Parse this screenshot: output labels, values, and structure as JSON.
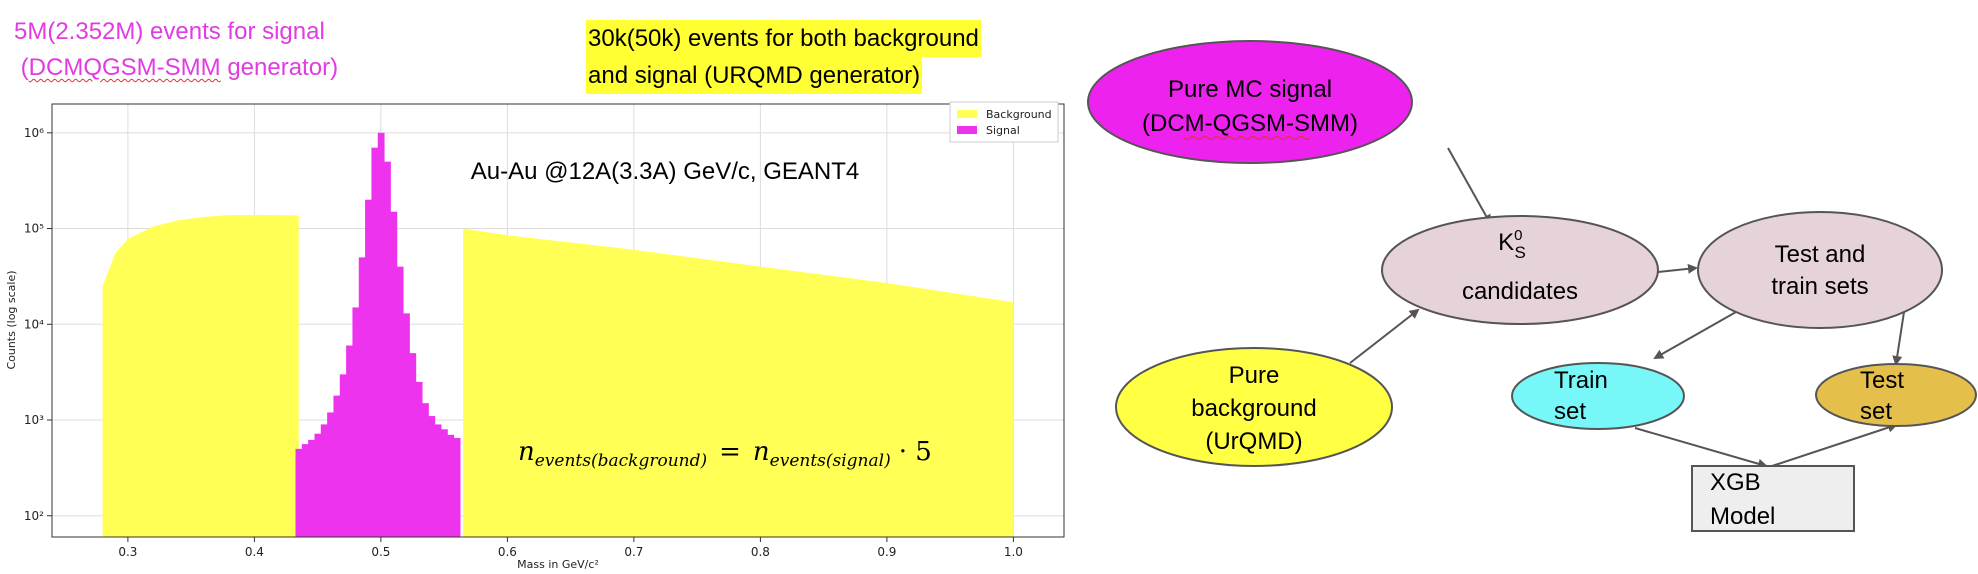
{
  "notes": {
    "signal_line1": "5M(2.352M) events for signal",
    "signal_line2_pre": " (",
    "signal_line2_generator": "DCMQGSM-SMM",
    "signal_line2_post": " generator)",
    "bkg_line1": "30k(50k) events for both background",
    "bkg_line2": "and signal (URQMD generator)"
  },
  "plot": {
    "annotation": "Au-Au @12A(3.3A) GeV/c, GEANT4",
    "formula": {
      "lhs": "n",
      "lhs_sub": "events(background)",
      "eq": "=",
      "rhs": "n",
      "rhs_sub": "events(signal)",
      "tail": "· 5"
    }
  },
  "chart_data": {
    "type": "bar",
    "xlabel": "Mass in GeV/c²",
    "ylabel": "Counts (log scale)",
    "xlim": [
      0.24,
      1.04
    ],
    "ylim": [
      60,
      2000000
    ],
    "log_y": true,
    "grid": true,
    "legend_position": "top-right",
    "x_ticks": [
      "0.3",
      "0.4",
      "0.5",
      "0.6",
      "0.7",
      "0.8",
      "0.9",
      "1.0"
    ],
    "y_ticks": [
      "10²",
      "10³",
      "10⁴",
      "10⁵",
      "10⁶"
    ],
    "series": [
      {
        "name": "Background",
        "color": "#ffff55",
        "x": [
          0.28,
          0.29,
          0.3,
          0.32,
          0.34,
          0.36,
          0.38,
          0.4,
          0.42,
          0.435,
          0.565,
          0.6,
          0.7,
          0.8,
          0.9,
          1.0
        ],
        "y": [
          25000,
          55000,
          78000,
          105000,
          122000,
          132000,
          138000,
          139000,
          138000,
          137000,
          100000,
          85000,
          60000,
          40000,
          27000,
          17000
        ]
      },
      {
        "name": "Signal",
        "color": "#ee33ee",
        "x": [
          0.435,
          0.44,
          0.445,
          0.45,
          0.455,
          0.46,
          0.465,
          0.47,
          0.475,
          0.48,
          0.485,
          0.49,
          0.495,
          0.5,
          0.505,
          0.51,
          0.515,
          0.52,
          0.525,
          0.53,
          0.535,
          0.54,
          0.545,
          0.55,
          0.555,
          0.56
        ],
        "y": [
          500,
          560,
          620,
          720,
          900,
          1200,
          1800,
          3000,
          6000,
          15000,
          50000,
          200000,
          700000,
          1000000,
          500000,
          150000,
          40000,
          13000,
          5000,
          2500,
          1500,
          1100,
          900,
          800,
          700,
          650
        ]
      }
    ]
  },
  "diagram": {
    "nodes": {
      "pure_mc": {
        "line1": "Pure MC signal",
        "line2": "(DCM-QGSM-SMM)",
        "color": "#ee22ee"
      },
      "k0s": {
        "k": "K",
        "sup": "0",
        "sub": "S",
        "line2": "candidates",
        "color": "#e6d3da"
      },
      "test_train": {
        "line1": "Test and",
        "line2": "train sets",
        "color": "#e6d3da"
      },
      "pure_bkg": {
        "line1": "Pure",
        "line2": "background",
        "line3": "(UrQMD)",
        "color": "#ffff44"
      },
      "train_set": {
        "line1": "Train",
        "line2": "set",
        "color": "#77f7f7"
      },
      "test_set": {
        "line1": "Test",
        "line2": "set",
        "color": "#e4bf4c"
      },
      "xgb": {
        "line1": "XGB",
        "line2": "Model",
        "color": "#eeeeee"
      }
    }
  }
}
